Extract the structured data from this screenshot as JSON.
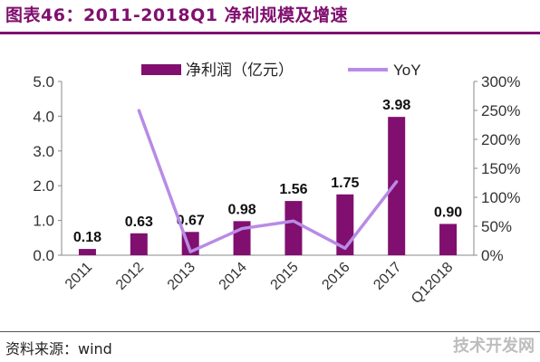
{
  "header": {
    "title": "图表46：2011-2018Q1 净利规模及增速"
  },
  "footer": {
    "source": "资料来源：wind",
    "watermark": "技术开发网"
  },
  "chart_data": {
    "type": "bar",
    "categories": [
      "2011",
      "2012",
      "2013",
      "2014",
      "2015",
      "2016",
      "2017",
      "Q12018"
    ],
    "series": [
      {
        "name": "净利润（亿元）",
        "type": "bar",
        "axis": "left",
        "values": [
          0.18,
          0.63,
          0.67,
          0.98,
          1.56,
          1.75,
          3.98,
          0.9
        ],
        "color": "#800f6f"
      },
      {
        "name": "YoY",
        "type": "line",
        "axis": "right",
        "values": [
          null,
          250,
          6,
          46,
          59,
          12,
          127,
          null
        ],
        "color": "#b88be6"
      }
    ],
    "y_left": {
      "ylim": [
        0,
        5
      ],
      "ticks": [
        "0.0",
        "1.0",
        "2.0",
        "3.0",
        "4.0",
        "5.0"
      ]
    },
    "y_right": {
      "ylim": [
        0,
        300
      ],
      "ticks": [
        "0%",
        "50%",
        "100%",
        "150%",
        "200%",
        "250%",
        "300%"
      ]
    },
    "data_labels": [
      "0.18",
      "0.63",
      "0.67",
      "0.98",
      "1.56",
      "1.75",
      "3.98",
      "0.90"
    ],
    "legend_position": "top",
    "grid": false
  }
}
